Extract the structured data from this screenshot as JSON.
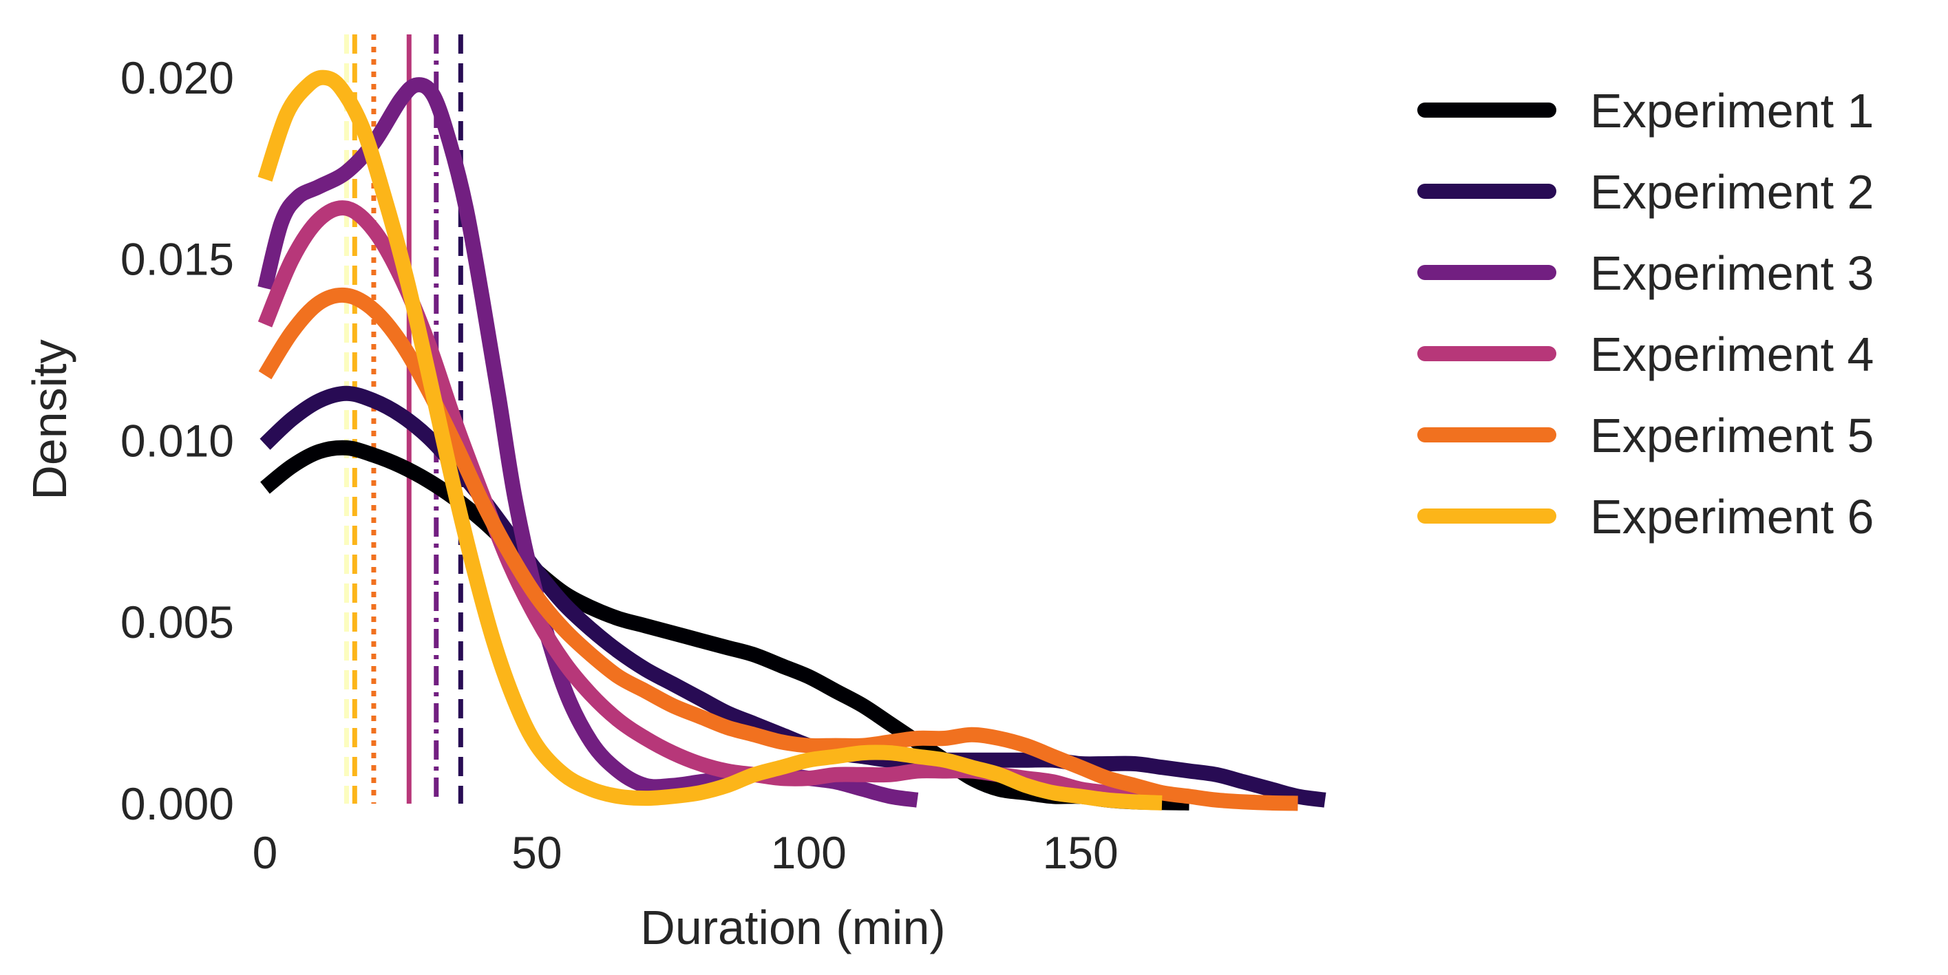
{
  "chart_data": {
    "type": "line",
    "title": "",
    "xlabel": "Duration (min)",
    "ylabel": "Density",
    "xlim": [
      0,
      195
    ],
    "ylim": [
      0,
      0.021
    ],
    "xticks": [
      0,
      50,
      100,
      150
    ],
    "xtick_labels": [
      "0",
      "50",
      "100",
      "150"
    ],
    "yticks": [
      0,
      0.005,
      0.01,
      0.015,
      0.02
    ],
    "ytick_labels": [
      "0.000",
      "0.005",
      "0.010",
      "0.015",
      "0.020"
    ],
    "grid": false,
    "legend_position": "right",
    "series": [
      {
        "name": "Experiment 1",
        "color": "#000004",
        "points": [
          [
            0,
            0.0087
          ],
          [
            5,
            0.0093
          ],
          [
            10,
            0.0097
          ],
          [
            15,
            0.0098
          ],
          [
            20,
            0.0096
          ],
          [
            25,
            0.0093
          ],
          [
            30,
            0.0089
          ],
          [
            35,
            0.0084
          ],
          [
            40,
            0.0078
          ],
          [
            45,
            0.0071
          ],
          [
            50,
            0.0064
          ],
          [
            55,
            0.0058
          ],
          [
            60,
            0.0054
          ],
          [
            65,
            0.0051
          ],
          [
            70,
            0.0049
          ],
          [
            75,
            0.0047
          ],
          [
            80,
            0.0045
          ],
          [
            85,
            0.0043
          ],
          [
            90,
            0.0041
          ],
          [
            95,
            0.0038
          ],
          [
            100,
            0.0035
          ],
          [
            105,
            0.0031
          ],
          [
            110,
            0.0027
          ],
          [
            115,
            0.0022
          ],
          [
            120,
            0.0017
          ],
          [
            125,
            0.0012
          ],
          [
            130,
            0.0007
          ],
          [
            135,
            0.0004
          ],
          [
            140,
            0.0003
          ],
          [
            145,
            0.0002
          ],
          [
            150,
            0.0002
          ],
          [
            155,
            0.0001
          ],
          [
            160,
            5e-05
          ],
          [
            170,
            2e-05
          ]
        ]
      },
      {
        "name": "Experiment 2",
        "color": "#280b54",
        "points": [
          [
            0,
            0.0099
          ],
          [
            5,
            0.0106
          ],
          [
            10,
            0.0111
          ],
          [
            15,
            0.0113
          ],
          [
            20,
            0.0111
          ],
          [
            25,
            0.0107
          ],
          [
            30,
            0.0101
          ],
          [
            35,
            0.0093
          ],
          [
            40,
            0.0084
          ],
          [
            45,
            0.0074
          ],
          [
            50,
            0.0064
          ],
          [
            55,
            0.0055
          ],
          [
            60,
            0.0048
          ],
          [
            65,
            0.0042
          ],
          [
            70,
            0.0037
          ],
          [
            75,
            0.0033
          ],
          [
            80,
            0.0029
          ],
          [
            85,
            0.0025
          ],
          [
            90,
            0.0022
          ],
          [
            95,
            0.0019
          ],
          [
            100,
            0.0016
          ],
          [
            105,
            0.0014
          ],
          [
            110,
            0.0013
          ],
          [
            115,
            0.0012
          ],
          [
            120,
            0.0012
          ],
          [
            125,
            0.0012
          ],
          [
            130,
            0.0012
          ],
          [
            135,
            0.0012
          ],
          [
            140,
            0.0012
          ],
          [
            145,
            0.0012
          ],
          [
            150,
            0.0011
          ],
          [
            155,
            0.0011
          ],
          [
            160,
            0.0011
          ],
          [
            165,
            0.001
          ],
          [
            170,
            0.0009
          ],
          [
            175,
            0.0008
          ],
          [
            180,
            0.0006
          ],
          [
            185,
            0.0004
          ],
          [
            190,
            0.0002
          ],
          [
            195,
            0.0001
          ]
        ]
      },
      {
        "name": "Experiment 3",
        "color": "#721f81",
        "points": [
          [
            0,
            0.0142
          ],
          [
            3,
            0.016
          ],
          [
            6,
            0.0167
          ],
          [
            10,
            0.017
          ],
          [
            15,
            0.0174
          ],
          [
            20,
            0.0182
          ],
          [
            25,
            0.0194
          ],
          [
            28,
            0.0198
          ],
          [
            31,
            0.0195
          ],
          [
            34,
            0.0182
          ],
          [
            37,
            0.0164
          ],
          [
            40,
            0.0139
          ],
          [
            43,
            0.0112
          ],
          [
            46,
            0.0084
          ],
          [
            50,
            0.0057
          ],
          [
            55,
            0.0032
          ],
          [
            60,
            0.0017
          ],
          [
            65,
            0.0009
          ],
          [
            70,
            0.0005
          ],
          [
            75,
            0.0005
          ],
          [
            80,
            0.0006
          ],
          [
            85,
            0.0007
          ],
          [
            90,
            0.0008
          ],
          [
            95,
            0.0008
          ],
          [
            100,
            0.0007
          ],
          [
            105,
            0.0006
          ],
          [
            110,
            0.0004
          ],
          [
            115,
            0.0002
          ],
          [
            120,
            0.0001
          ]
        ]
      },
      {
        "name": "Experiment 4",
        "color": "#b73779",
        "points": [
          [
            0,
            0.0132
          ],
          [
            5,
            0.015
          ],
          [
            10,
            0.0161
          ],
          [
            15,
            0.0164
          ],
          [
            20,
            0.0158
          ],
          [
            25,
            0.0145
          ],
          [
            30,
            0.0127
          ],
          [
            35,
            0.0105
          ],
          [
            40,
            0.0085
          ],
          [
            45,
            0.0066
          ],
          [
            50,
            0.0051
          ],
          [
            55,
            0.0039
          ],
          [
            60,
            0.003
          ],
          [
            65,
            0.0023
          ],
          [
            70,
            0.0018
          ],
          [
            75,
            0.0014
          ],
          [
            80,
            0.0011
          ],
          [
            85,
            0.0009
          ],
          [
            90,
            0.0008
          ],
          [
            95,
            0.0007
          ],
          [
            100,
            0.0007
          ],
          [
            105,
            0.0008
          ],
          [
            110,
            0.0008
          ],
          [
            115,
            0.0008
          ],
          [
            120,
            0.0009
          ],
          [
            125,
            0.0009
          ],
          [
            130,
            0.0009
          ],
          [
            135,
            0.0008
          ],
          [
            140,
            0.0007
          ],
          [
            145,
            0.0006
          ],
          [
            150,
            0.0004
          ],
          [
            155,
            0.0003
          ],
          [
            160,
            0.0002
          ],
          [
            165,
            0.0001
          ]
        ]
      },
      {
        "name": "Experiment 5",
        "color": "#f1711f",
        "points": [
          [
            0,
            0.0118
          ],
          [
            5,
            0.013
          ],
          [
            10,
            0.0138
          ],
          [
            15,
            0.014
          ],
          [
            20,
            0.0136
          ],
          [
            25,
            0.0127
          ],
          [
            30,
            0.0114
          ],
          [
            35,
            0.0099
          ],
          [
            40,
            0.0083
          ],
          [
            45,
            0.0069
          ],
          [
            50,
            0.0057
          ],
          [
            55,
            0.0048
          ],
          [
            60,
            0.0041
          ],
          [
            65,
            0.0035
          ],
          [
            70,
            0.0031
          ],
          [
            75,
            0.0027
          ],
          [
            80,
            0.0024
          ],
          [
            85,
            0.0021
          ],
          [
            90,
            0.0019
          ],
          [
            95,
            0.0017
          ],
          [
            100,
            0.0016
          ],
          [
            105,
            0.0016
          ],
          [
            110,
            0.0016
          ],
          [
            115,
            0.0017
          ],
          [
            120,
            0.0018
          ],
          [
            125,
            0.0018
          ],
          [
            130,
            0.0019
          ],
          [
            135,
            0.0018
          ],
          [
            140,
            0.0016
          ],
          [
            145,
            0.0013
          ],
          [
            150,
            0.001
          ],
          [
            155,
            0.0007
          ],
          [
            160,
            0.0005
          ],
          [
            165,
            0.0003
          ],
          [
            170,
            0.0002
          ],
          [
            175,
            0.0001
          ],
          [
            180,
            5e-05
          ],
          [
            185,
            2e-05
          ],
          [
            190,
            1e-05
          ]
        ]
      },
      {
        "name": "Experiment 6",
        "color": "#fcb519",
        "points": [
          [
            0,
            0.0172
          ],
          [
            4,
            0.019
          ],
          [
            8,
            0.0198
          ],
          [
            11,
            0.02
          ],
          [
            14,
            0.0197
          ],
          [
            18,
            0.0186
          ],
          [
            22,
            0.0167
          ],
          [
            26,
            0.0145
          ],
          [
            30,
            0.0119
          ],
          [
            34,
            0.0092
          ],
          [
            38,
            0.0067
          ],
          [
            42,
            0.0045
          ],
          [
            46,
            0.0028
          ],
          [
            50,
            0.0016
          ],
          [
            55,
            0.0008
          ],
          [
            60,
            0.0004
          ],
          [
            65,
            0.0002
          ],
          [
            70,
            0.00015
          ],
          [
            75,
            0.0002
          ],
          [
            80,
            0.0003
          ],
          [
            85,
            0.0005
          ],
          [
            90,
            0.0008
          ],
          [
            95,
            0.001
          ],
          [
            100,
            0.0012
          ],
          [
            105,
            0.0013
          ],
          [
            110,
            0.0014
          ],
          [
            115,
            0.0014
          ],
          [
            120,
            0.0013
          ],
          [
            125,
            0.0012
          ],
          [
            130,
            0.001
          ],
          [
            135,
            0.0008
          ],
          [
            140,
            0.0005
          ],
          [
            145,
            0.0003
          ],
          [
            150,
            0.0002
          ],
          [
            155,
            0.0001
          ],
          [
            160,
            5e-05
          ],
          [
            165,
            2e-05
          ]
        ]
      }
    ],
    "vertical_lines": [
      {
        "series": "Experiment 1",
        "x": 15,
        "style": "dashed",
        "color": "#fcfdbf"
      },
      {
        "series": "Experiment 6",
        "x": 16.5,
        "style": "dashed",
        "color": "#fcb519"
      },
      {
        "series": "Experiment 5",
        "x": 20,
        "style": "dotted",
        "color": "#f1711f"
      },
      {
        "series": "Experiment 4",
        "x": 26.5,
        "style": "solid",
        "color": "#b73779"
      },
      {
        "series": "Experiment 3",
        "x": 31.5,
        "style": "dashdot",
        "color": "#721f81"
      },
      {
        "series": "Experiment 2",
        "x": 36,
        "style": "dashed",
        "color": "#280b54"
      }
    ]
  }
}
